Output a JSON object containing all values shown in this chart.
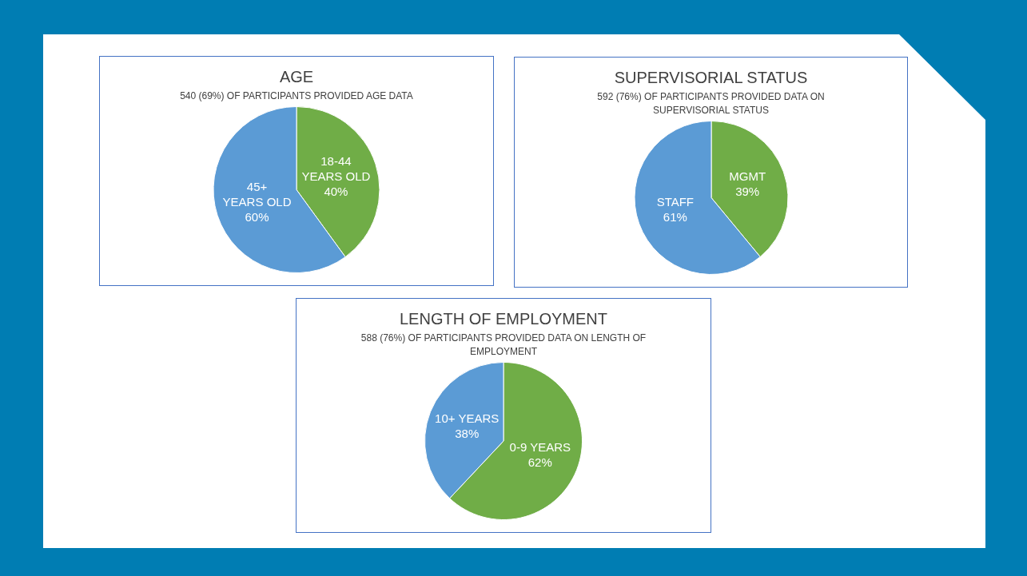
{
  "chart_data": [
    {
      "type": "pie",
      "title": "AGE",
      "subtitle": "540 (69%) OF PARTICIPANTS PROVIDED AGE DATA",
      "categories": [
        "18-44 YEARS OLD",
        "45+ YEARS OLD"
      ],
      "values": [
        40,
        60
      ],
      "colors": [
        "#70ad47",
        "#5b9bd5"
      ],
      "value_labels": [
        "40%",
        "60%"
      ],
      "legend": false
    },
    {
      "type": "pie",
      "title": "SUPERVISORIAL STATUS",
      "subtitle": "592 (76%) OF PARTICIPANTS PROVIDED DATA ON SUPERVISORIAL STATUS",
      "categories": [
        "MGMT",
        "STAFF"
      ],
      "values": [
        39,
        61
      ],
      "colors": [
        "#70ad47",
        "#5b9bd5"
      ],
      "value_labels": [
        "39%",
        "61%"
      ],
      "legend": false
    },
    {
      "type": "pie",
      "title": "LENGTH OF EMPLOYMENT",
      "subtitle": "588 (76%) OF PARTICIPANTS PROVIDED DATA ON LENGTH OF EMPLOYMENT",
      "categories": [
        "0-9 YEARS",
        "10+ YEARS"
      ],
      "values": [
        62,
        38
      ],
      "colors": [
        "#70ad47",
        "#5b9bd5"
      ],
      "value_labels": [
        "62%",
        "38%"
      ],
      "legend": false
    }
  ]
}
